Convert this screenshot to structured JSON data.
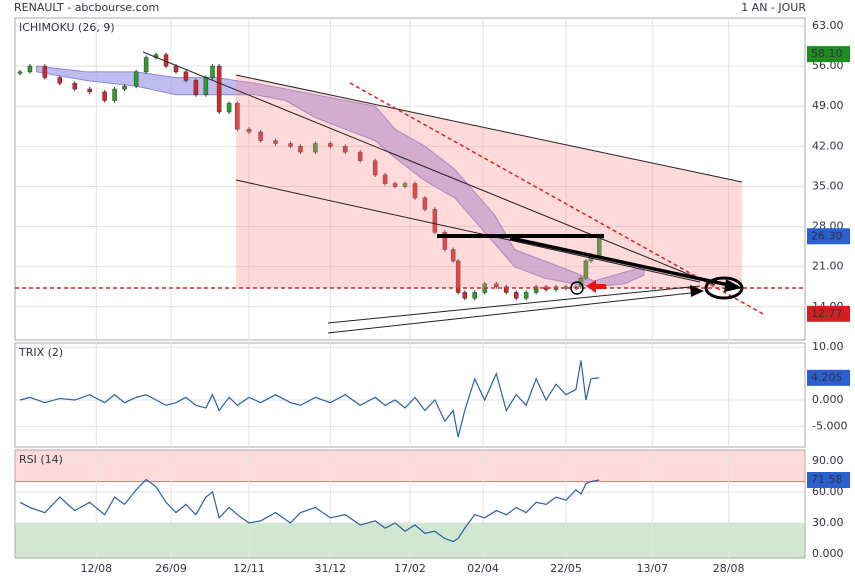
{
  "header": {
    "title": "RENAULT - abcbourse.com",
    "period": "1 AN - JOUR"
  },
  "chart_data": [
    {
      "type": "candlestick",
      "title": "ICHIMOKU (26, 9)",
      "up_color": "#2ca02c",
      "down_color": "#d62728",
      "x": [
        -46,
        -40,
        -31,
        -22,
        -13,
        -4,
        5,
        11,
        17,
        24,
        30,
        36,
        42,
        48,
        54,
        60,
        66,
        70,
        74,
        80,
        85,
        92,
        99,
        108,
        117,
        123,
        132,
        141,
        150,
        159,
        168,
        174,
        180,
        186,
        192,
        198,
        204,
        210,
        215,
        218,
        222,
        228,
        234,
        241,
        247,
        253,
        259,
        265,
        271,
        277,
        283,
        289,
        292,
        295,
        298,
        303
      ],
      "values": [
        55,
        56,
        54,
        53,
        52,
        51.5,
        50,
        52,
        52.5,
        55,
        57.5,
        58,
        56,
        55,
        53.5,
        51,
        54,
        56,
        48,
        49.5,
        45,
        44.5,
        43,
        42.5,
        42,
        41,
        42.5,
        42,
        41,
        39.5,
        37,
        35.5,
        35,
        35.5,
        33,
        31,
        27,
        24,
        22,
        16.5,
        15.5,
        16.5,
        18,
        17.5,
        16.5,
        15.5,
        16.5,
        17.5,
        17,
        17.5,
        17.5,
        17.5,
        19,
        22,
        23,
        26.3
      ],
      "cloud": {
        "color": "#a9a6ea",
        "x": [
          -36,
          -6,
          24,
          48,
          72,
          96,
          114,
          132,
          150,
          168,
          180,
          198,
          216,
          228,
          240,
          252,
          270,
          288,
          300,
          318,
          330
        ],
        "upper": [
          56,
          55,
          55,
          54,
          54,
          53,
          52,
          51,
          50,
          49,
          45,
          42,
          38,
          34,
          30,
          24,
          22,
          20,
          18.5,
          20,
          21
        ],
        "lower": [
          55,
          53.5,
          52.5,
          51,
          51,
          51,
          50,
          47,
          45,
          43,
          40,
          36,
          33,
          29,
          25,
          21,
          19,
          18,
          17.5,
          18,
          19.5
        ]
      },
      "xlim": [
        -49,
        427
      ],
      "ylim": [
        8.2,
        64.4
      ],
      "yticks": [
        {
          "value": 63,
          "label": "63.00"
        },
        {
          "value": 56,
          "label": "56.00"
        },
        {
          "value": 49,
          "label": "49.00"
        },
        {
          "value": 42,
          "label": "42.00"
        },
        {
          "value": 35,
          "label": "35.00"
        },
        {
          "value": 28,
          "label": "28.00"
        },
        {
          "value": 21,
          "label": "21.00"
        },
        {
          "value": 14,
          "label": "14.00"
        }
      ],
      "badges": [
        {
          "value": 58.1,
          "label": "58.10",
          "color": "#1e8c1e"
        },
        {
          "value": 26.3,
          "label": "26.30",
          "color": "#2a5fd0"
        },
        {
          "value": 12.77,
          "label": "12.77",
          "color": "#d22020"
        }
      ],
      "grid": true
    },
    {
      "type": "line",
      "title": "TRIX (2)",
      "color": "#2a5fa8",
      "x": [
        -46,
        -40,
        -31,
        -22,
        -13,
        -4,
        5,
        11,
        17,
        24,
        30,
        36,
        42,
        48,
        54,
        60,
        66,
        70,
        74,
        80,
        85,
        92,
        99,
        108,
        117,
        123,
        132,
        141,
        150,
        159,
        168,
        174,
        180,
        186,
        192,
        198,
        204,
        210,
        215,
        218,
        222,
        228,
        234,
        241,
        247,
        253,
        259,
        265,
        271,
        277,
        283,
        289,
        292,
        295,
        298,
        303
      ],
      "values": [
        0,
        0.5,
        -0.5,
        0.3,
        0,
        1,
        -0.5,
        1,
        -0.5,
        0.5,
        1,
        0,
        -1,
        -0.5,
        0.5,
        -1,
        -1.5,
        1,
        -2,
        0.5,
        -1,
        0.5,
        -0.5,
        1,
        -0.5,
        -1,
        0.5,
        -0.5,
        1,
        -1,
        0.5,
        -1,
        0,
        -1.5,
        0.5,
        -2,
        0,
        -4,
        -2,
        -7,
        -2,
        4,
        0,
        5,
        -2,
        1,
        -1,
        4,
        0,
        3,
        1,
        2,
        7.5,
        0,
        4,
        4.205
      ],
      "xlim": [
        -49,
        427
      ],
      "ylim": [
        -8.9,
        10.8
      ],
      "yticks": [
        {
          "value": 10,
          "label": "10.00"
        },
        {
          "value": 0,
          "label": "0.000"
        },
        {
          "value": -5,
          "label": "-5.000"
        }
      ],
      "badges": [
        {
          "value": 4.205,
          "label": "4.205",
          "color": "#2a5fd0"
        }
      ],
      "grid": true
    },
    {
      "type": "line",
      "title": "RSI (14)",
      "color": "#2a5fa8",
      "x": [
        -46,
        -40,
        -31,
        -22,
        -13,
        -4,
        5,
        11,
        17,
        24,
        30,
        36,
        42,
        48,
        54,
        60,
        66,
        70,
        74,
        80,
        85,
        92,
        99,
        108,
        117,
        123,
        132,
        141,
        150,
        159,
        168,
        174,
        180,
        186,
        192,
        198,
        204,
        210,
        215,
        218,
        222,
        228,
        234,
        241,
        247,
        253,
        259,
        265,
        271,
        277,
        283,
        289,
        292,
        295,
        298,
        303
      ],
      "values": [
        50,
        45,
        40,
        55,
        42,
        50,
        38,
        55,
        48,
        62,
        72,
        65,
        50,
        40,
        48,
        38,
        55,
        60,
        35,
        45,
        38,
        30,
        32,
        40,
        30,
        40,
        45,
        35,
        38,
        28,
        32,
        25,
        30,
        22,
        28,
        20,
        22,
        15,
        12,
        15,
        25,
        38,
        35,
        42,
        38,
        45,
        40,
        50,
        48,
        55,
        52,
        62,
        58,
        68,
        70,
        71.58
      ],
      "overbought": 70,
      "oversold": 30,
      "xlim": [
        -49,
        427
      ],
      "ylim": [
        -3.9,
        100.6
      ],
      "yticks": [
        {
          "value": 90,
          "label": "90.00"
        },
        {
          "value": 60,
          "label": "60.00"
        },
        {
          "value": 30,
          "label": "30.00"
        },
        {
          "value": 0,
          "label": "0.000"
        }
      ],
      "xticks": [
        {
          "value": 0,
          "label": "12/08"
        },
        {
          "value": 45,
          "label": "26/09"
        },
        {
          "value": 92,
          "label": "12/11"
        },
        {
          "value": 141,
          "label": "31/12"
        },
        {
          "value": 189,
          "label": "17/02"
        },
        {
          "value": 233,
          "label": "02/04"
        },
        {
          "value": 283,
          "label": "22/05"
        },
        {
          "value": 335,
          "label": "13/07"
        },
        {
          "value": 381,
          "label": "28/08"
        }
      ],
      "badges": [
        {
          "value": 71.58,
          "label": "71.58",
          "color": "#2a5fd0"
        }
      ],
      "grid": true
    }
  ]
}
